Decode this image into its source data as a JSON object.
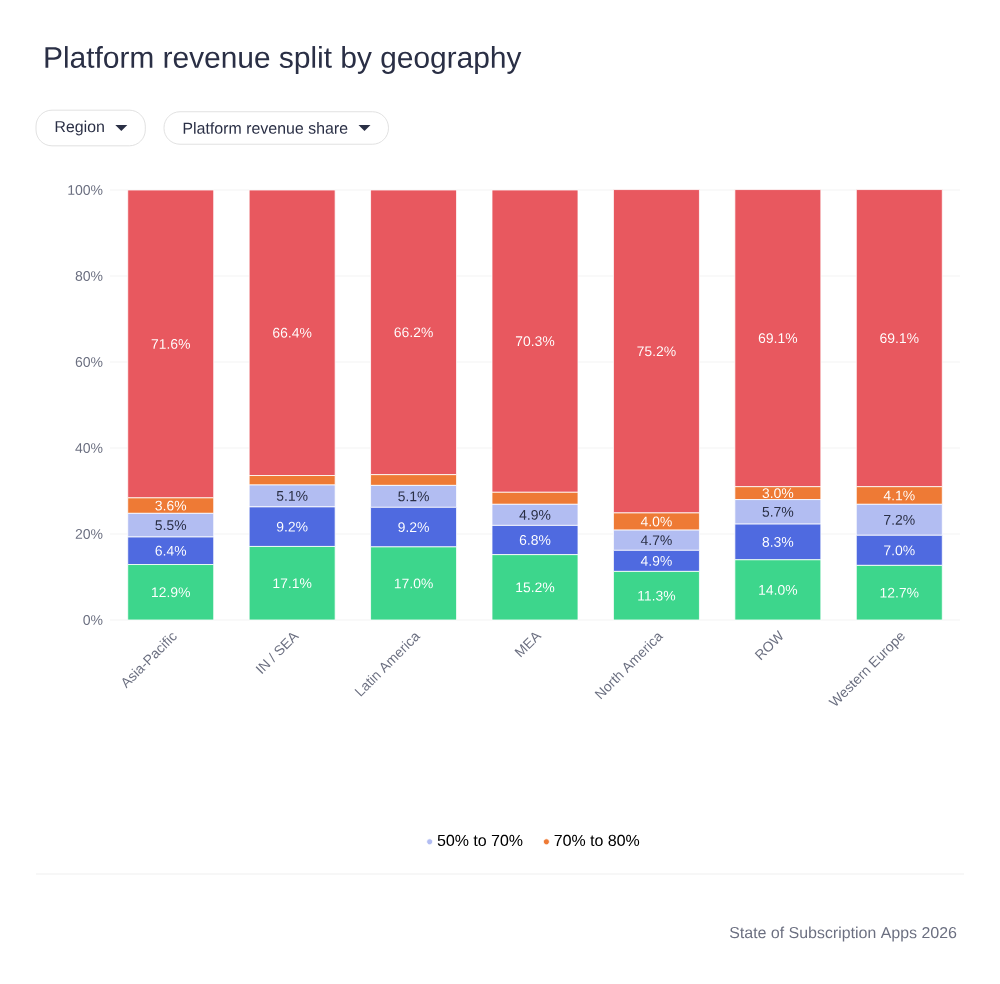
{
  "chart_data": {
    "type": "bar",
    "title": "Platform revenue split by geography",
    "annotations": [
      "Region",
      "Platform revenue share",
      "State of Subscription Apps 2026"
    ],
    "categories": [
      "Asia-Pacific",
      "IN / SEA",
      "Latin America",
      "MEA",
      "North America",
      "ROW",
      "Western Europe"
    ],
    "stacked": true,
    "series": [
      {
        "color": "#3dd68c",
        "values": [
          12.9,
          17.1,
          17.0,
          15.2,
          11.3,
          14.0,
          12.7
        ],
        "value_labels": [
          "12.9%",
          "17.1%",
          "17.0%",
          "15.2%",
          "11.3%",
          "14.0%",
          "12.7%"
        ]
      },
      {
        "color": "#4f6ae0",
        "values": [
          6.4,
          9.2,
          9.2,
          6.8,
          4.9,
          8.3,
          7.0
        ],
        "value_labels": [
          "6.4%",
          "9.2%",
          "9.2%",
          "6.8%",
          "4.9%",
          "8.3%",
          "7.0%"
        ]
      },
      {
        "name": "50% to 70%",
        "color": "#b2bdf2",
        "values": [
          5.5,
          5.1,
          5.1,
          4.9,
          4.7,
          5.7,
          7.2
        ],
        "value_labels": [
          "5.5%",
          "5.1%",
          "5.1%",
          "4.9%",
          "4.7%",
          "5.7%",
          "7.2%"
        ]
      },
      {
        "name": "70% to 80%",
        "color": "#ee7a35",
        "values": [
          3.6,
          2.2,
          2.5,
          2.8,
          4.0,
          3.0,
          4.1
        ],
        "value_labels": [
          "3.6%",
          null,
          null,
          null,
          "4.0%",
          "3.0%",
          "4.1%"
        ]
      },
      {
        "color": "#e8585f",
        "values": [
          71.6,
          66.4,
          66.2,
          70.3,
          75.2,
          69.1,
          69.1
        ],
        "value_labels": [
          "71.6%",
          "66.4%",
          "66.2%",
          "70.3%",
          "75.2%",
          "69.1%",
          "69.1%"
        ]
      }
    ],
    "ylim": [
      0,
      100
    ],
    "yticks": [
      {
        "value": 0,
        "label": "0%"
      },
      {
        "value": 20,
        "label": "20%"
      },
      {
        "value": 40,
        "label": "40%"
      },
      {
        "value": 60,
        "label": "60%"
      },
      {
        "value": 80,
        "label": "80%"
      },
      {
        "value": 100,
        "label": "100%"
      }
    ],
    "grid": "y",
    "legend": "bottom"
  }
}
